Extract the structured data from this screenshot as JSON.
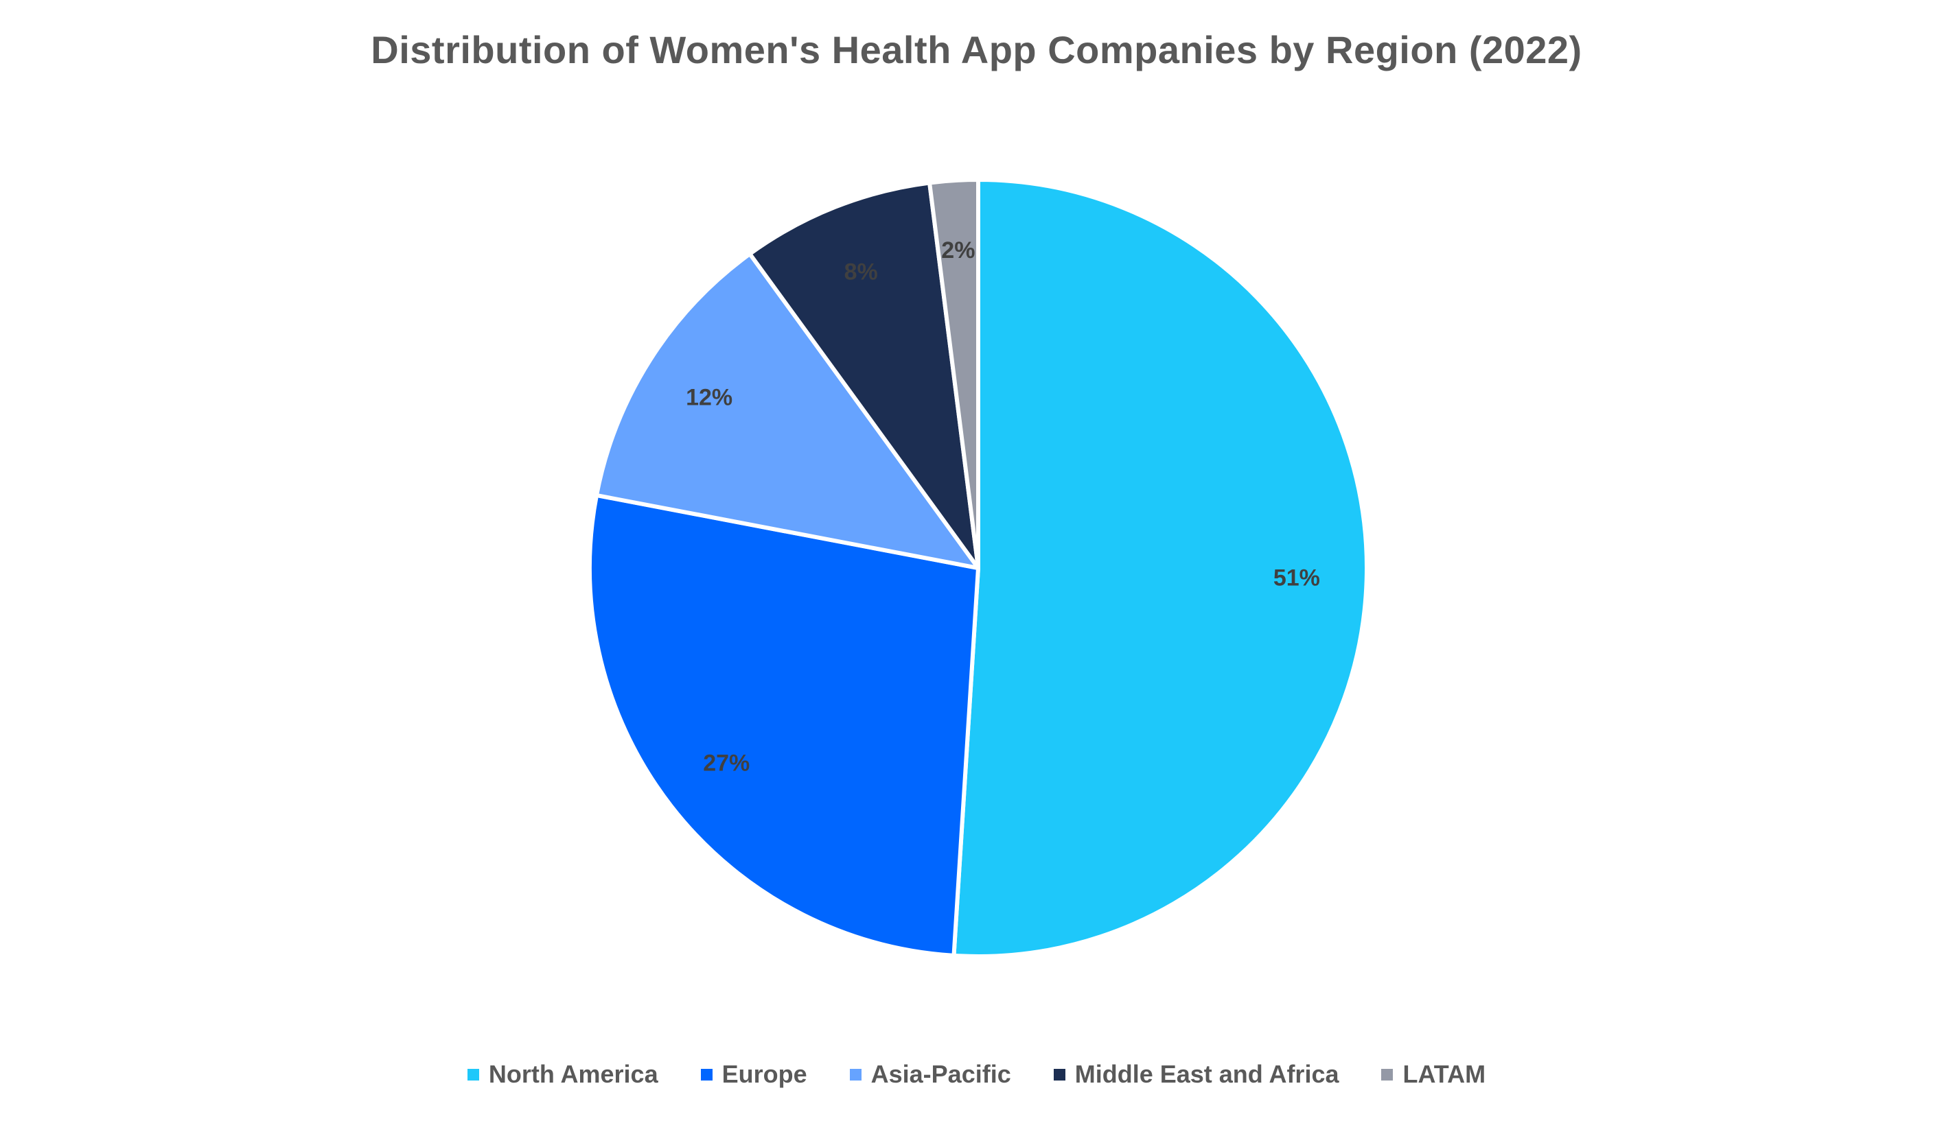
{
  "chart_data": {
    "type": "pie",
    "title": "Distribution of Women's Health App Companies by Region (2022)",
    "categories": [
      "North America",
      "Europe",
      "Asia-Pacific",
      "Middle East and Africa",
      "LATAM"
    ],
    "values": [
      51,
      27,
      12,
      8,
      2
    ],
    "labels": [
      "51%",
      "27%",
      "12%",
      "8%",
      "2%"
    ],
    "colors": [
      "#1EC8FA",
      "#0066FF",
      "#66A3FF",
      "#1C2E52",
      "#9499A6"
    ],
    "label_colors": [
      "#404040",
      "#404040",
      "#404040",
      "#404040",
      "#404040"
    ],
    "legend_position": "bottom",
    "start_angle_deg": 0,
    "direction": "clockwise"
  }
}
